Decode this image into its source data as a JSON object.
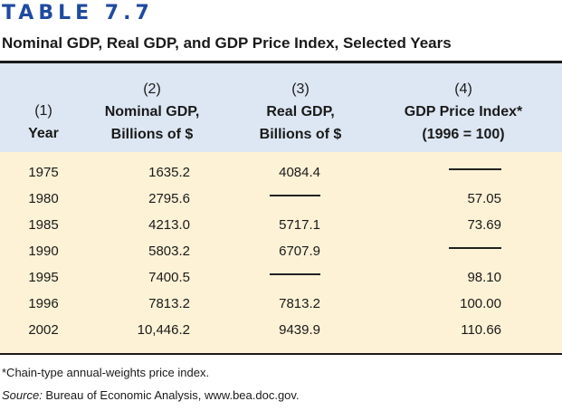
{
  "table_label": "TABLE 7.7",
  "caption": "Nominal GDP, Real GDP, and GDP Price Index, Selected Years",
  "columns": [
    {
      "number": "(1)",
      "title": "Year",
      "subtitle": ""
    },
    {
      "number": "(2)",
      "title": "Nominal GDP,",
      "subtitle": "Billions of $"
    },
    {
      "number": "(3)",
      "title": "Real GDP,",
      "subtitle": "Billions of $"
    },
    {
      "number": "(4)",
      "title": "GDP Price Index*",
      "subtitle": "(1996 = 100)"
    }
  ],
  "rows": [
    {
      "year": "1975",
      "nominal": "1635.2",
      "real": "4084.4",
      "index": ""
    },
    {
      "year": "1980",
      "nominal": "2795.6",
      "real": "",
      "index": "57.05"
    },
    {
      "year": "1985",
      "nominal": "4213.0",
      "real": "5717.1",
      "index": "73.69"
    },
    {
      "year": "1990",
      "nominal": "5803.2",
      "real": "6707.9",
      "index": ""
    },
    {
      "year": "1995",
      "nominal": "7400.5",
      "real": "",
      "index": "98.10"
    },
    {
      "year": "1996",
      "nominal": "7813.2",
      "real": "7813.2",
      "index": "100.00"
    },
    {
      "year": "2002",
      "nominal": "10,446.2",
      "real": "9439.9",
      "index": "110.66"
    }
  ],
  "footnote": "*Chain-type annual-weights price index.",
  "source_label": "Source:",
  "source_text": " Bureau of Economic Analysis, www.bea.doc.gov."
}
